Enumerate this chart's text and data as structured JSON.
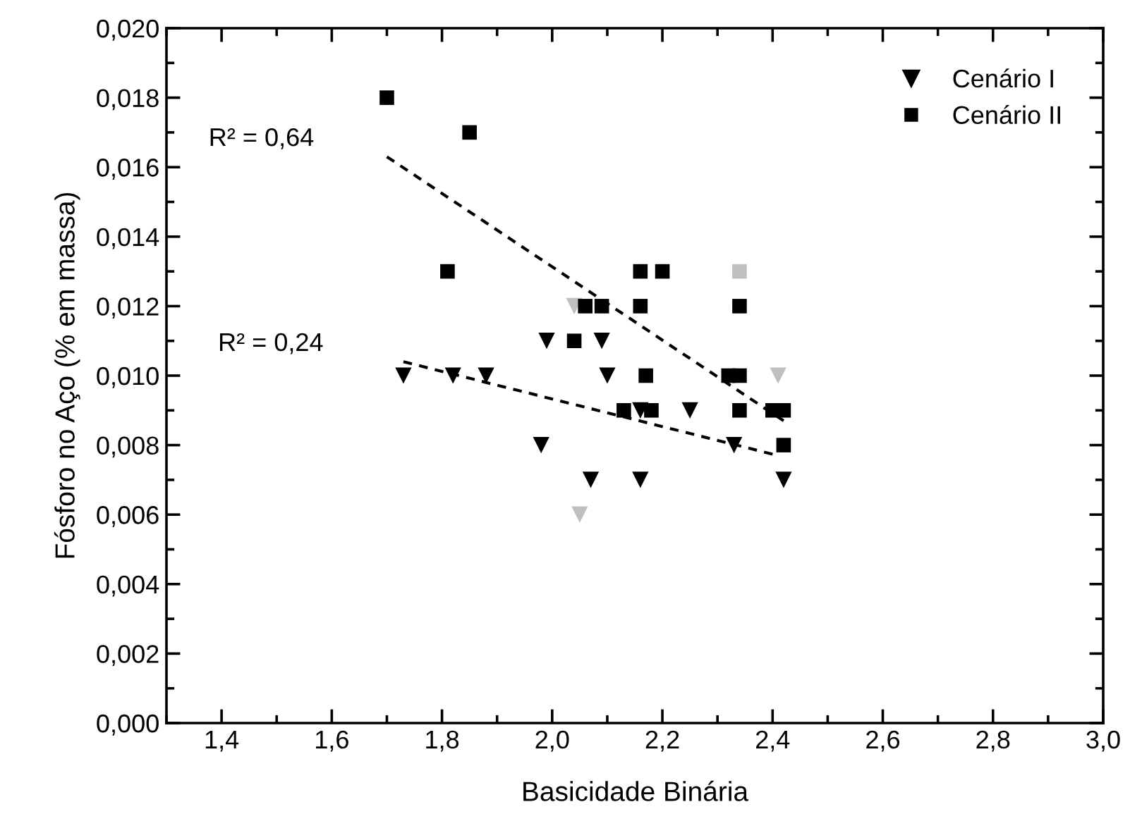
{
  "chart_data": {
    "type": "scatter",
    "xlabel": "Basicidade Binária",
    "ylabel": "Fósforo no Aço (% em massa)",
    "xlim": [
      1.3,
      3.0
    ],
    "ylim": [
      0.0,
      0.02
    ],
    "xticks": [
      {
        "value": 1.4,
        "label": "1,4"
      },
      {
        "value": 1.6,
        "label": "1,6"
      },
      {
        "value": 1.8,
        "label": "1,8"
      },
      {
        "value": 2.0,
        "label": "2,0"
      },
      {
        "value": 2.2,
        "label": "2,2"
      },
      {
        "value": 2.4,
        "label": "2,4"
      },
      {
        "value": 2.6,
        "label": "2,6"
      },
      {
        "value": 2.8,
        "label": "2,8"
      },
      {
        "value": 3.0,
        "label": "3,0"
      }
    ],
    "yticks": [
      {
        "value": 0.0,
        "label": "0,000"
      },
      {
        "value": 0.002,
        "label": "0,002"
      },
      {
        "value": 0.004,
        "label": "0,004"
      },
      {
        "value": 0.006,
        "label": "0,006"
      },
      {
        "value": 0.008,
        "label": "0,008"
      },
      {
        "value": 0.01,
        "label": "0,010"
      },
      {
        "value": 0.012,
        "label": "0,012"
      },
      {
        "value": 0.014,
        "label": "0,014"
      },
      {
        "value": 0.016,
        "label": "0,016"
      },
      {
        "value": 0.018,
        "label": "0,018"
      },
      {
        "value": 0.02,
        "label": "0,020"
      }
    ],
    "grid": false,
    "legend": "top right",
    "series": [
      {
        "name": "Cenário I",
        "marker": "triangle",
        "color": "#000000",
        "x": [
          1.73,
          1.82,
          1.88,
          1.99,
          2.09,
          2.1,
          2.16,
          2.25,
          1.98,
          2.33,
          2.07,
          2.16,
          2.42,
          2.04,
          2.41,
          2.05
        ],
        "values": [
          0.01,
          0.01,
          0.01,
          0.011,
          0.011,
          0.01,
          0.009,
          0.009,
          0.008,
          0.008,
          0.007,
          0.007,
          0.007,
          0.012,
          0.01,
          0.006
        ],
        "colors": [
          "#000000",
          "#000000",
          "#000000",
          "#000000",
          "#000000",
          "#000000",
          "#000000",
          "#000000",
          "#000000",
          "#000000",
          "#000000",
          "#000000",
          "#000000",
          "#bfbfbf",
          "#bfbfbf",
          "#bfbfbf"
        ]
      },
      {
        "name": "Cenário II",
        "marker": "square",
        "color": "#000000",
        "x": [
          1.7,
          1.85,
          1.81,
          2.16,
          2.2,
          2.06,
          2.09,
          2.16,
          2.34,
          2.04,
          2.17,
          2.32,
          2.34,
          2.13,
          2.18,
          2.34,
          2.4,
          2.42,
          2.42,
          2.34
        ],
        "values": [
          0.018,
          0.017,
          0.013,
          0.013,
          0.013,
          0.012,
          0.012,
          0.012,
          0.012,
          0.011,
          0.01,
          0.01,
          0.01,
          0.009,
          0.009,
          0.009,
          0.009,
          0.009,
          0.008,
          0.013
        ],
        "colors": [
          "#000000",
          "#000000",
          "#000000",
          "#000000",
          "#000000",
          "#000000",
          "#000000",
          "#000000",
          "#000000",
          "#000000",
          "#000000",
          "#000000",
          "#000000",
          "#000000",
          "#000000",
          "#000000",
          "#000000",
          "#000000",
          "#000000",
          "#bfbfbf"
        ]
      },
      {
        "type": "line",
        "line_style": "dashed",
        "color": "#000000",
        "x": [
          1.73,
          2.41
        ],
        "values": [
          0.0104,
          0.0077
        ]
      },
      {
        "type": "line",
        "line_style": "dashed",
        "color": "#000000",
        "x": [
          1.7,
          2.42
        ],
        "values": [
          0.0163,
          0.0087
        ]
      }
    ],
    "annotations": [
      "R² = 0,64",
      "R² = 0,24"
    ]
  }
}
